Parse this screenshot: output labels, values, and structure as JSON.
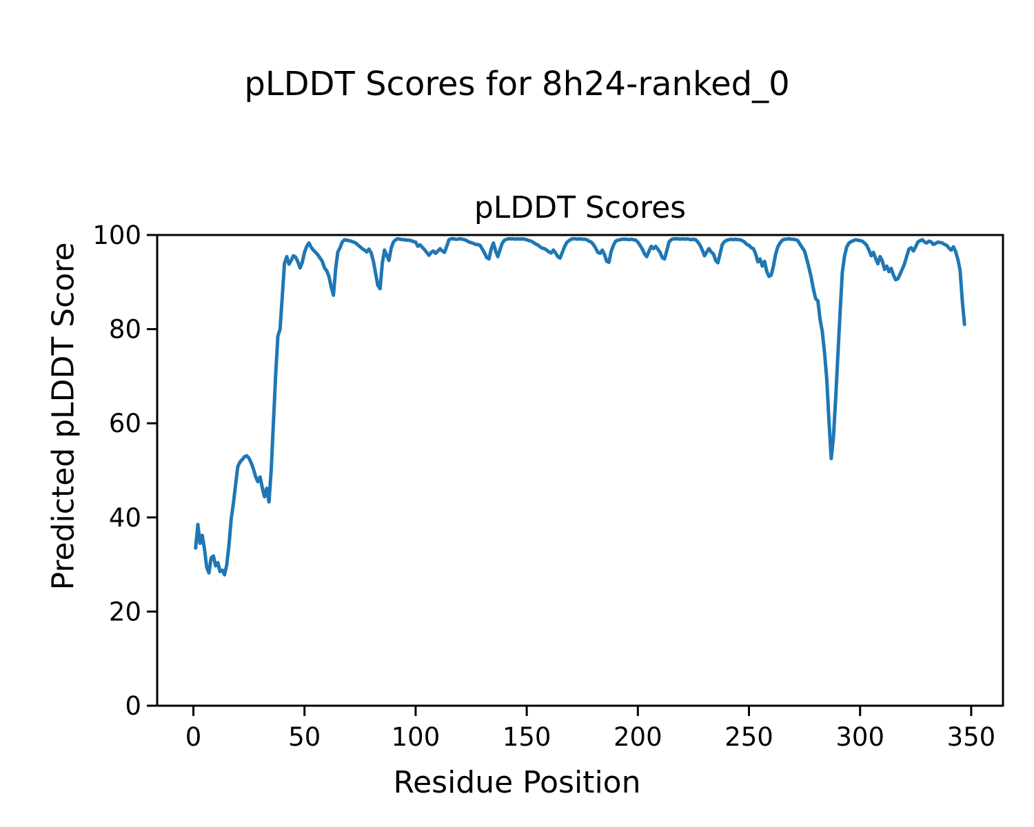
{
  "figure": {
    "suptitle": "pLDDT Scores for 8h24-ranked_0",
    "axes_title": "pLDDT Scores",
    "xlabel": "Residue Position",
    "ylabel": "Predicted pLDDT Score"
  },
  "chart_data": {
    "type": "line",
    "title": "pLDDT Scores",
    "suptitle": "pLDDT Scores for 8h24-ranked_0",
    "xlabel": "Residue Position",
    "ylabel": "Predicted pLDDT Score",
    "line_color": "#1f77b4",
    "axis_color": "#000000",
    "grid": false,
    "legend": "none",
    "xlim": [
      -16.3,
      364.3
    ],
    "ylim": [
      0,
      100
    ],
    "xticks": [
      0,
      50,
      100,
      150,
      200,
      250,
      300,
      350
    ],
    "yticks": [
      0,
      20,
      40,
      60,
      80,
      100
    ],
    "series": [
      {
        "name": "pLDDT",
        "x_start": 1,
        "x_step": 1,
        "values": [
          33.5,
          38.5,
          34.5,
          36.2,
          33.2,
          29.4,
          28.2,
          31.4,
          31.8,
          29.7,
          30.4,
          28.5,
          28.8,
          27.8,
          29.9,
          34.0,
          39.7,
          43.0,
          47.0,
          50.8,
          51.8,
          52.3,
          52.9,
          53.1,
          52.6,
          51.6,
          50.3,
          48.7,
          47.6,
          48.6,
          46.3,
          44.4,
          46.2,
          43.3,
          50.0,
          60.0,
          70.0,
          78.5,
          80.0,
          87.0,
          94.0,
          95.4,
          93.8,
          94.6,
          95.6,
          95.3,
          94.3,
          93.0,
          94.2,
          96.3,
          97.6,
          98.3,
          97.4,
          96.8,
          96.3,
          95.8,
          95.1,
          94.4,
          93.0,
          92.4,
          91.2,
          89.0,
          87.2,
          92.8,
          96.4,
          97.3,
          98.5,
          99.0,
          98.9,
          98.8,
          98.7,
          98.5,
          98.3,
          97.9,
          97.5,
          97.1,
          96.8,
          96.4,
          97.0,
          96.2,
          94.4,
          91.8,
          89.3,
          88.6,
          94.0,
          96.8,
          95.7,
          94.6,
          97.2,
          98.5,
          99.0,
          99.2,
          99.1,
          99.0,
          99.0,
          98.9,
          98.9,
          98.8,
          98.6,
          98.5,
          97.6,
          97.9,
          97.4,
          96.9,
          96.3,
          95.7,
          96.3,
          96.6,
          96.1,
          96.6,
          97.1,
          96.6,
          96.3,
          97.6,
          99.0,
          99.2,
          99.2,
          99.1,
          99.1,
          99.2,
          99.1,
          99.0,
          98.8,
          98.5,
          98.4,
          98.2,
          98.0,
          98.0,
          97.8,
          97.0,
          96.2,
          95.2,
          94.9,
          97.0,
          98.3,
          96.6,
          95.4,
          96.9,
          98.3,
          98.9,
          99.1,
          99.2,
          99.2,
          99.2,
          99.1,
          99.2,
          99.1,
          99.2,
          99.1,
          99.0,
          98.8,
          98.7,
          98.4,
          98.1,
          97.9,
          97.5,
          97.2,
          97.1,
          96.8,
          96.4,
          96.2,
          96.8,
          96.2,
          95.4,
          95.1,
          96.3,
          97.5,
          98.4,
          98.8,
          99.1,
          99.2,
          99.2,
          99.1,
          99.2,
          99.1,
          99.1,
          99.0,
          98.7,
          98.5,
          98.0,
          97.2,
          96.3,
          96.1,
          96.8,
          95.8,
          94.4,
          94.2,
          96.5,
          97.8,
          98.7,
          98.9,
          99.0,
          99.1,
          99.1,
          99.1,
          99.0,
          99.1,
          99.0,
          98.9,
          98.5,
          97.8,
          97.0,
          96.0,
          95.4,
          96.5,
          97.6,
          97.1,
          97.6,
          97.0,
          96.3,
          95.2,
          94.9,
          96.6,
          98.5,
          99.0,
          99.2,
          99.2,
          99.2,
          99.1,
          99.2,
          99.1,
          99.2,
          99.1,
          99.0,
          99.1,
          99.0,
          98.5,
          97.8,
          96.8,
          95.6,
          96.4,
          97.1,
          96.4,
          96.0,
          94.6,
          94.1,
          96.0,
          98.0,
          98.6,
          98.9,
          99.0,
          99.1,
          99.0,
          99.1,
          99.0,
          99.0,
          98.8,
          98.5,
          98.0,
          97.8,
          97.3,
          97.1,
          96.0,
          94.3,
          94.9,
          93.4,
          94.4,
          92.3,
          91.2,
          91.5,
          93.4,
          95.9,
          97.5,
          98.3,
          98.9,
          99.1,
          99.1,
          99.2,
          99.1,
          99.1,
          99.0,
          98.8,
          98.0,
          97.3,
          96.6,
          94.9,
          93.0,
          91.0,
          88.5,
          86.5,
          86.0,
          82.0,
          79.5,
          75.0,
          69.5,
          60.5,
          52.5,
          57.0,
          65.0,
          74.5,
          83.5,
          92.0,
          95.5,
          97.5,
          98.3,
          98.6,
          98.8,
          99.0,
          98.9,
          98.8,
          98.7,
          98.3,
          97.8,
          96.8,
          95.6,
          96.3,
          95.0,
          93.9,
          95.4,
          94.5,
          92.7,
          93.4,
          92.2,
          92.9,
          91.5,
          90.5,
          90.7,
          91.7,
          92.8,
          93.9,
          95.5,
          97.0,
          97.3,
          96.6,
          97.5,
          98.5,
          98.8,
          99.0,
          98.5,
          98.3,
          98.7,
          98.5,
          98.0,
          98.2,
          98.5,
          98.4,
          98.3,
          98.0,
          97.8,
          97.2,
          96.8,
          97.5,
          96.5,
          94.8,
          92.5,
          86.0,
          81.0
        ]
      }
    ]
  }
}
